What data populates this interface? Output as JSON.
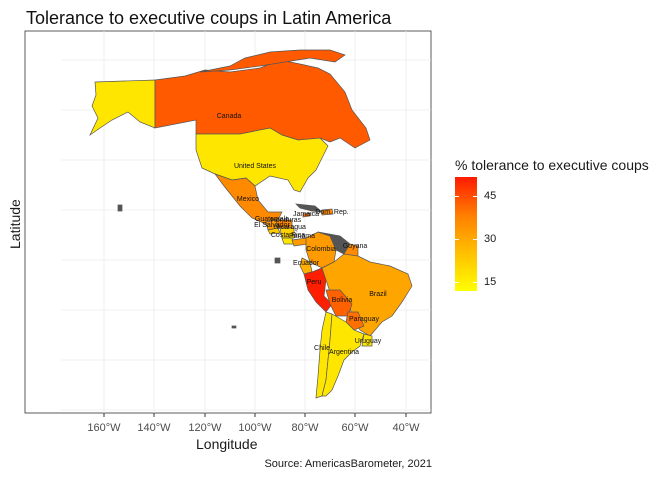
{
  "title": "Tolerance to executive coups in Latin America",
  "axes": {
    "xlabel": "Longitude",
    "ylabel": "Latitude",
    "x_ticks": [
      "160°W",
      "140°W",
      "120°W",
      "100°W",
      "80°W",
      "60°W",
      "40°W"
    ]
  },
  "caption": "Source: AmericasBarometer, 2021",
  "legend": {
    "title": "% tolerance to executive coups",
    "ticks": [
      "45",
      "30",
      "15"
    ]
  },
  "colors": {
    "low": "#ffff00",
    "mid": "#ffa500",
    "high": "#ff1a00",
    "border": "#555555",
    "grid": "#ebebeb"
  },
  "countries": [
    {
      "name": "Canada",
      "color": "#ff5a00"
    },
    {
      "name": "United States",
      "color": "#ffe600"
    },
    {
      "name": "Mexico",
      "color": "#ff8a00"
    },
    {
      "name": "Jamaica",
      "color": "#ff7000"
    },
    {
      "name": "Dom. Rep.",
      "color": "#ff8a00"
    },
    {
      "name": "Guatemala",
      "color": "#ff9a00"
    },
    {
      "name": "El Salvador",
      "color": "#ffcc00"
    },
    {
      "name": "Honduras",
      "color": "#ff8a00"
    },
    {
      "name": "Nicaragua",
      "color": "#ffd200"
    },
    {
      "name": "Costa Rica",
      "color": "#ffe600"
    },
    {
      "name": "Panama",
      "color": "#ff9a00"
    },
    {
      "name": "Colombia",
      "color": "#ff9a00"
    },
    {
      "name": "Guyana",
      "color": "#ff8a00"
    },
    {
      "name": "Ecuador",
      "color": "#ffb000"
    },
    {
      "name": "Peru",
      "color": "#ff1e00"
    },
    {
      "name": "Brazil",
      "color": "#ffa500"
    },
    {
      "name": "Bolivia",
      "color": "#ff6000"
    },
    {
      "name": "Paraguay",
      "color": "#ff7000"
    },
    {
      "name": "Chile",
      "color": "#ffe600"
    },
    {
      "name": "Argentina",
      "color": "#ffe600"
    },
    {
      "name": "Uruguay",
      "color": "#ffe600"
    }
  ]
}
